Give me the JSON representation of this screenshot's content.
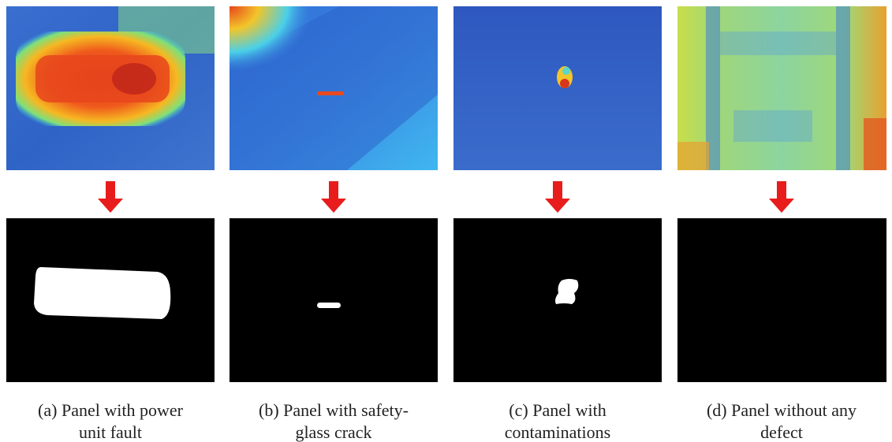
{
  "panels": [
    {
      "caption": [
        "(a) Panel with power",
        "unit fault"
      ]
    },
    {
      "caption": [
        "(b) Panel with safety-",
        "glass crack"
      ]
    },
    {
      "caption": [
        "(c) Panel with",
        "contaminations"
      ]
    },
    {
      "caption": [
        "(d) Panel without any",
        "defect"
      ]
    }
  ]
}
